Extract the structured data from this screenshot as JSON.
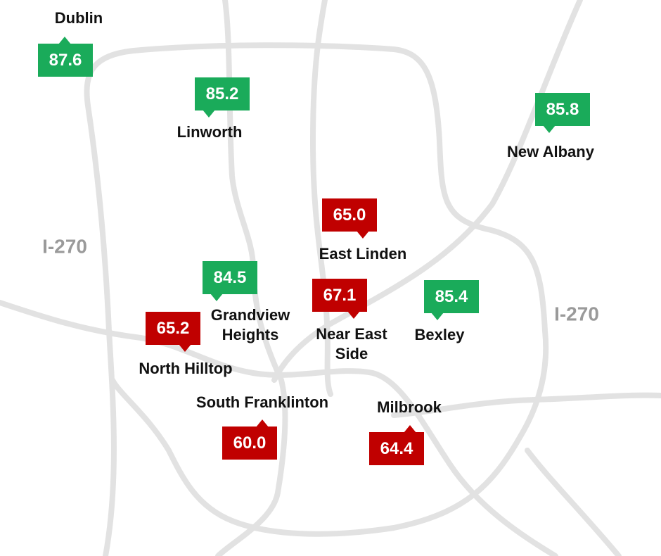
{
  "title_labels": [
    "I-270",
    "I-270"
  ],
  "places": [
    {
      "name": [
        "Dublin"
      ],
      "score": "87.6",
      "color": "#1aab5a"
    },
    {
      "name": [
        "Linworth"
      ],
      "score": "85.2",
      "color": "#1aab5a"
    },
    {
      "name": [
        "New Albany"
      ],
      "score": "85.8",
      "color": "#1aab5a"
    },
    {
      "name": [
        "East Linden"
      ],
      "score": "65.0",
      "color": "#c00000"
    },
    {
      "name": [
        "Grandview",
        "Heights"
      ],
      "score": "84.5",
      "color": "#1aab5a"
    },
    {
      "name": [
        "Near East",
        "Side"
      ],
      "score": "67.1",
      "color": "#c00000"
    },
    {
      "name": [
        "Bexley"
      ],
      "score": "85.4",
      "color": "#1aab5a"
    },
    {
      "name": [
        "North Hilltop"
      ],
      "score": "65.2",
      "color": "#c00000"
    },
    {
      "name": [
        "South Franklinton"
      ],
      "score": "60.0",
      "color": "#c00000"
    },
    {
      "name": [
        "Milbrook"
      ],
      "score": "64.4",
      "color": "#c00000"
    }
  ]
}
